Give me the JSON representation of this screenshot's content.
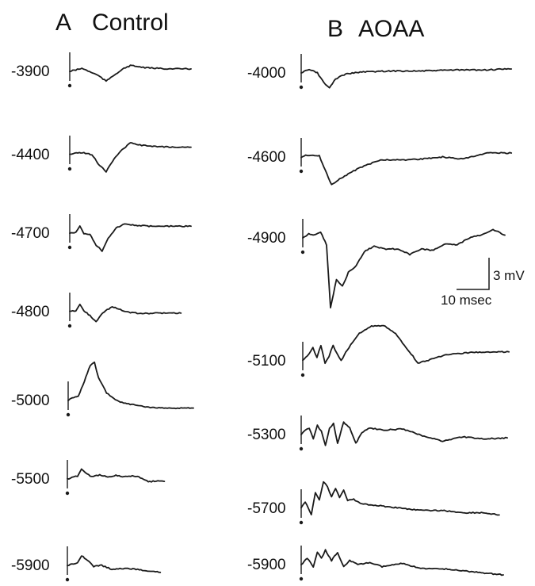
{
  "panels": [
    {
      "letter": "A",
      "name": "Control",
      "traces": [
        {
          "depth": "-3900",
          "waveform": [
            [
              0,
              0
            ],
            [
              3,
              -1.5
            ],
            [
              6,
              -3
            ],
            [
              9,
              -0.5
            ],
            [
              14,
              4
            ],
            [
              18,
              10
            ],
            [
              21,
              5
            ],
            [
              26,
              -2
            ],
            [
              30,
              -6
            ],
            [
              33,
              -5
            ],
            [
              38,
              -3.5
            ],
            [
              50,
              -2.5
            ],
            [
              60,
              -2.5
            ]
          ]
        },
        {
          "depth": "-4400",
          "waveform": [
            [
              0,
              0
            ],
            [
              4,
              -2
            ],
            [
              7,
              -2
            ],
            [
              11,
              0
            ],
            [
              14,
              9
            ],
            [
              18,
              17
            ],
            [
              22,
              4
            ],
            [
              26,
              -5
            ],
            [
              30,
              -12
            ],
            [
              33,
              -10
            ],
            [
              40,
              -8.5
            ],
            [
              50,
              -7.5
            ],
            [
              60,
              -7.5
            ]
          ]
        },
        {
          "depth": "-4700",
          "waveform": [
            [
              0,
              0
            ],
            [
              3,
              -1
            ],
            [
              5,
              -7
            ],
            [
              7,
              1
            ],
            [
              10,
              1
            ],
            [
              13,
              12
            ],
            [
              16,
              18
            ],
            [
              19,
              5
            ],
            [
              23,
              -5
            ],
            [
              27,
              -9
            ],
            [
              32,
              -8
            ],
            [
              40,
              -7
            ],
            [
              50,
              -7
            ],
            [
              60,
              -7
            ]
          ]
        },
        {
          "depth": "-4800",
          "waveform": [
            [
              0,
              0
            ],
            [
              3,
              -1
            ],
            [
              5,
              -7
            ],
            [
              7,
              -1
            ],
            [
              10,
              4
            ],
            [
              13,
              10
            ],
            [
              17,
              0
            ],
            [
              21,
              -5
            ],
            [
              25,
              -2
            ],
            [
              30,
              1
            ],
            [
              36,
              2
            ],
            [
              44,
              1.5
            ],
            [
              55,
              1.5
            ]
          ]
        },
        {
          "depth": "-5000",
          "waveform": [
            [
              0,
              0
            ],
            [
              2,
              -2
            ],
            [
              5,
              -3
            ],
            [
              8,
              -15
            ],
            [
              11,
              -28
            ],
            [
              13,
              -30
            ],
            [
              15,
              -18
            ],
            [
              19,
              -6
            ],
            [
              25,
              1
            ],
            [
              34,
              4
            ],
            [
              44,
              6
            ],
            [
              55,
              6
            ],
            [
              62,
              6
            ]
          ]
        },
        {
          "depth": "-5500",
          "waveform": [
            [
              0,
              0
            ],
            [
              3,
              -2
            ],
            [
              5,
              -3
            ],
            [
              7,
              -10
            ],
            [
              9,
              -6
            ],
            [
              12,
              -2
            ],
            [
              16,
              -4
            ],
            [
              20,
              -2
            ],
            [
              24,
              -3.5
            ],
            [
              28,
              -2
            ],
            [
              33,
              -3
            ],
            [
              37,
              -1
            ],
            [
              40,
              3
            ],
            [
              44,
              2
            ],
            [
              48,
              2.5
            ]
          ]
        },
        {
          "depth": "-5900",
          "waveform": [
            [
              0,
              0
            ],
            [
              3,
              -1.5
            ],
            [
              5,
              -3
            ],
            [
              7,
              -10
            ],
            [
              10,
              -5
            ],
            [
              13,
              1
            ],
            [
              17,
              0
            ],
            [
              22,
              4
            ],
            [
              30,
              3
            ],
            [
              38,
              5
            ],
            [
              46,
              7
            ]
          ]
        }
      ]
    },
    {
      "letter": "B",
      "name": "AOAA",
      "traces": [
        {
          "depth": "-4000",
          "waveform": [
            [
              0,
              0
            ],
            [
              3,
              -3
            ],
            [
              5,
              -3
            ],
            [
              8,
              0
            ],
            [
              12,
              12
            ],
            [
              14,
              15
            ],
            [
              17,
              6
            ],
            [
              22,
              1
            ],
            [
              30,
              -1
            ],
            [
              45,
              -2
            ],
            [
              60,
              -2
            ],
            [
              75,
              -3
            ],
            [
              90,
              -3
            ],
            [
              104,
              -4
            ]
          ]
        },
        {
          "depth": "-4600",
          "waveform": [
            [
              0,
              0
            ],
            [
              3,
              -2
            ],
            [
              5,
              -2
            ],
            [
              9,
              -1
            ],
            [
              12,
              14
            ],
            [
              15,
              28
            ],
            [
              19,
              22
            ],
            [
              25,
              15
            ],
            [
              32,
              8
            ],
            [
              40,
              3
            ],
            [
              50,
              3
            ],
            [
              60,
              2
            ],
            [
              70,
              0
            ],
            [
              80,
              2
            ],
            [
              92,
              -4
            ],
            [
              104,
              -4
            ]
          ]
        },
        {
          "depth": "-4900",
          "waveform": [
            [
              0,
              0
            ],
            [
              3,
              -3
            ],
            [
              6,
              -2
            ],
            [
              9,
              -4
            ],
            [
              12,
              5
            ],
            [
              14,
              50
            ],
            [
              17,
              30
            ],
            [
              20,
              35
            ],
            [
              23,
              25
            ],
            [
              27,
              20
            ],
            [
              31,
              10
            ],
            [
              36,
              6
            ],
            [
              42,
              8
            ],
            [
              48,
              8
            ],
            [
              54,
              12
            ],
            [
              60,
              8
            ],
            [
              66,
              9
            ],
            [
              72,
              4
            ],
            [
              78,
              5
            ],
            [
              84,
              0
            ],
            [
              90,
              -2
            ],
            [
              96,
              -6
            ],
            [
              102,
              -2
            ]
          ]
        },
        {
          "depth": "-5100",
          "waveform": [
            [
              0,
              0
            ],
            [
              3,
              -6
            ],
            [
              5,
              -12
            ],
            [
              7,
              -3
            ],
            [
              9,
              -14
            ],
            [
              11,
              2
            ],
            [
              13,
              -4
            ],
            [
              15,
              -14
            ],
            [
              17,
              -6
            ],
            [
              19,
              0
            ],
            [
              22,
              -10
            ],
            [
              28,
              -25
            ],
            [
              34,
              -31
            ],
            [
              40,
              -32
            ],
            [
              46,
              -24
            ],
            [
              52,
              -10
            ],
            [
              57,
              2
            ],
            [
              63,
              -1
            ],
            [
              70,
              -5
            ],
            [
              80,
              -7
            ],
            [
              90,
              -8
            ],
            [
              102,
              -8
            ]
          ]
        },
        {
          "depth": "-5300",
          "waveform": [
            [
              0,
              0
            ],
            [
              2,
              -4
            ],
            [
              4,
              -6
            ],
            [
              6,
              4
            ],
            [
              8,
              -8
            ],
            [
              10,
              -3
            ],
            [
              12,
              10
            ],
            [
              14,
              -6
            ],
            [
              16,
              -10
            ],
            [
              18,
              8
            ],
            [
              21,
              -11
            ],
            [
              24,
              -6
            ],
            [
              27,
              8
            ],
            [
              30,
              -2
            ],
            [
              34,
              -6
            ],
            [
              40,
              -4
            ],
            [
              50,
              -5
            ],
            [
              60,
              1
            ],
            [
              70,
              6
            ],
            [
              80,
              2
            ],
            [
              90,
              4
            ],
            [
              102,
              3
            ]
          ]
        },
        {
          "depth": "-5700",
          "waveform": [
            [
              0,
              0
            ],
            [
              2,
              -6
            ],
            [
              5,
              6
            ],
            [
              7,
              -14
            ],
            [
              9,
              -8
            ],
            [
              11,
              -24
            ],
            [
              13,
              -20
            ],
            [
              15,
              -10
            ],
            [
              17,
              -18
            ],
            [
              19,
              -10
            ],
            [
              21,
              -16
            ],
            [
              23,
              -7
            ],
            [
              26,
              -8
            ],
            [
              30,
              -4
            ],
            [
              40,
              -2
            ],
            [
              50,
              0
            ],
            [
              60,
              2
            ],
            [
              70,
              2
            ],
            [
              80,
              4
            ],
            [
              90,
              4
            ],
            [
              98,
              6
            ]
          ]
        },
        {
          "depth": "-5900",
          "waveform": [
            [
              0,
              0
            ],
            [
              3,
              -6
            ],
            [
              6,
              2
            ],
            [
              8,
              -12
            ],
            [
              10,
              -6
            ],
            [
              12,
              -14
            ],
            [
              15,
              -4
            ],
            [
              18,
              -12
            ],
            [
              21,
              2
            ],
            [
              24,
              -4
            ],
            [
              28,
              0
            ],
            [
              34,
              -2
            ],
            [
              40,
              2
            ],
            [
              50,
              -1
            ],
            [
              60,
              4
            ],
            [
              70,
              4
            ],
            [
              80,
              6
            ],
            [
              90,
              8
            ],
            [
              100,
              10
            ]
          ]
        }
      ]
    }
  ],
  "scale_bar": {
    "voltage_label": "3 mV",
    "time_label": "10 msec"
  }
}
